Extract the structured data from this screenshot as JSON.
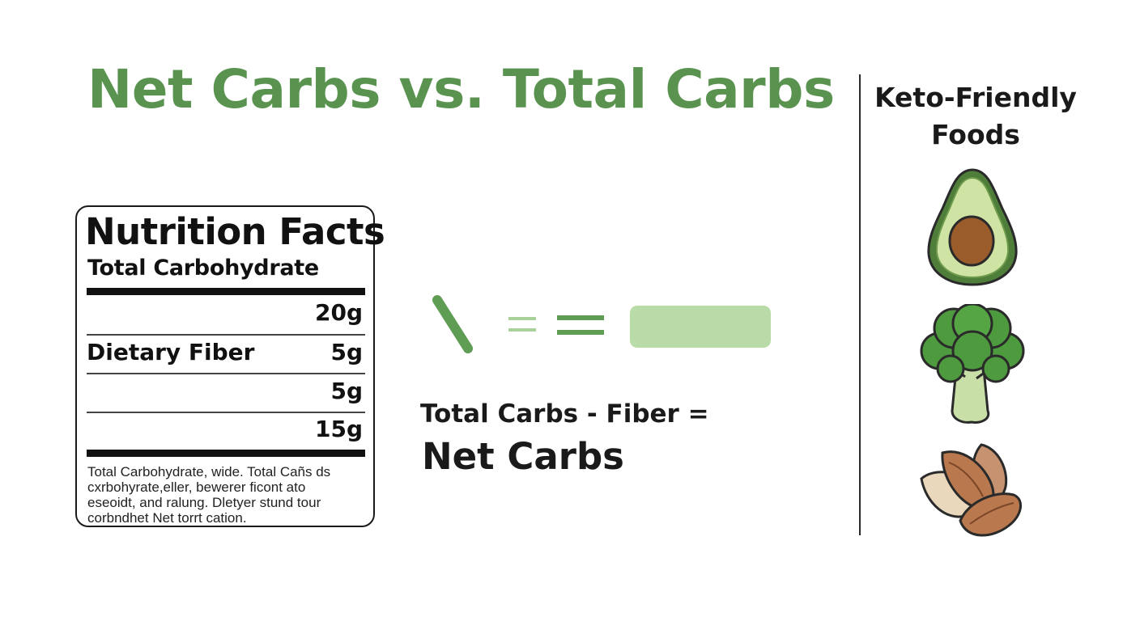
{
  "title": "Net Carbs vs. Total Carbs",
  "keto": {
    "heading_line1": "Keto-Friendly",
    "heading_line2": "Foods",
    "icons": [
      "avocado-icon",
      "broccoli-icon",
      "almonds-icon"
    ]
  },
  "nutrition_label": {
    "title": "Nutrition Facts",
    "subtitle": "Total Carbohydrate",
    "rows": [
      {
        "label": "",
        "value": "20g"
      },
      {
        "label": "Dietary Fiber",
        "value": "5g"
      },
      {
        "label": "",
        "value": "5g"
      },
      {
        "label": "",
        "value": "15g"
      }
    ],
    "footnote": [
      "Total Carbohydrate, wide. Total Cañs ds",
      "cxrbohyrate,eller, bewerer ficont ato",
      "eseoidt, and ralung. Dletyer stund tour",
      "corbndhet Net torrt cation."
    ]
  },
  "formula": {
    "text": "Total Carbs - Fiber =",
    "result": "Net Carbs"
  },
  "colors": {
    "title_green": "#5a9350",
    "accent_green": "#5f9d55",
    "light_green": "#b9dba8",
    "ink": "#1a1a1a"
  }
}
